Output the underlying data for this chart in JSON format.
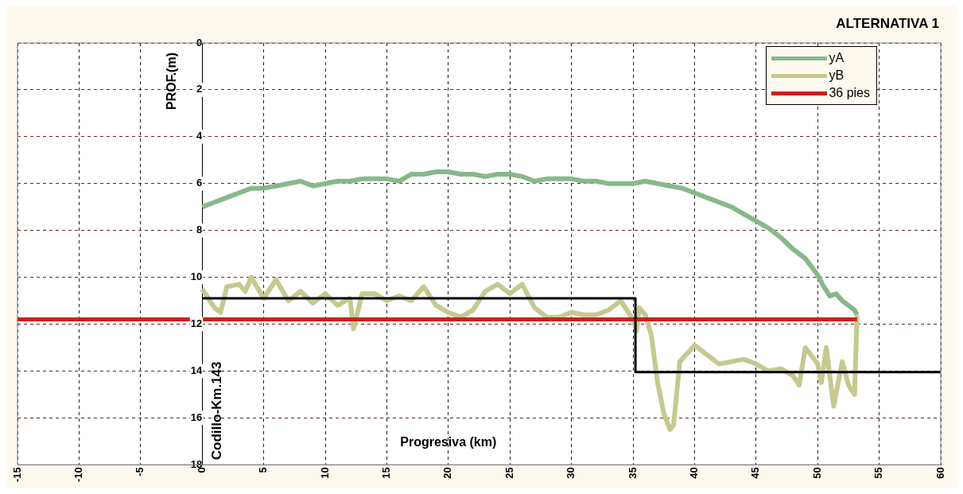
{
  "chart_data": {
    "type": "line",
    "title": "ALTERNATIVA 1",
    "xlabel": "Progresiva (km)",
    "ylabel": "PROF.(m)",
    "annotations": [
      "Codillo-Km.143"
    ],
    "xlim": [
      -15,
      60
    ],
    "xticks": [
      -15,
      -10,
      -5,
      0,
      5,
      10,
      15,
      20,
      25,
      30,
      35,
      40,
      45,
      50,
      55,
      60
    ],
    "ylim": [
      18,
      0
    ],
    "yticks": [
      0,
      2,
      4,
      6,
      8,
      10,
      12,
      14,
      16,
      18
    ],
    "grid": true,
    "legend": "top right",
    "line_style": "solid",
    "marker": "none",
    "series": [
      {
        "name": "yA",
        "color": "#88b88a",
        "x": [
          0,
          1,
          2,
          3,
          4,
          5,
          6,
          7,
          8,
          9,
          10,
          11,
          12,
          13,
          14,
          15,
          16,
          17,
          18,
          19,
          20,
          21,
          22,
          23,
          24,
          25,
          26,
          27,
          28,
          29,
          30,
          31,
          32,
          33,
          34,
          35,
          36,
          37,
          38,
          39,
          40,
          41,
          42,
          43,
          44,
          45,
          46,
          47,
          48,
          49,
          50,
          50.5,
          51,
          51.5,
          52,
          52.5,
          53,
          53.2
        ],
        "values": [
          7.0,
          6.8,
          6.6,
          6.4,
          6.2,
          6.2,
          6.1,
          6.0,
          5.9,
          6.1,
          6.0,
          5.9,
          5.9,
          5.8,
          5.8,
          5.8,
          5.9,
          5.6,
          5.6,
          5.5,
          5.5,
          5.6,
          5.6,
          5.7,
          5.6,
          5.6,
          5.7,
          5.9,
          5.8,
          5.8,
          5.8,
          5.9,
          5.9,
          6.0,
          6.0,
          6.0,
          5.9,
          6.0,
          6.1,
          6.2,
          6.4,
          6.6,
          6.8,
          7.0,
          7.3,
          7.6,
          7.9,
          8.3,
          8.8,
          9.2,
          9.9,
          10.4,
          10.8,
          10.7,
          11.0,
          11.2,
          11.4,
          11.6
        ]
      },
      {
        "name": "yB",
        "color": "#c6c98f",
        "x": [
          0,
          1,
          1.5,
          2,
          3,
          3.5,
          4,
          5,
          6,
          7,
          8,
          9,
          10,
          11,
          12,
          12.3,
          13,
          14,
          15,
          16,
          17,
          18,
          19,
          20,
          21,
          22,
          23,
          24,
          25,
          26,
          27,
          28,
          29,
          30,
          31,
          32,
          33,
          34,
          35,
          35.3,
          35.5,
          36,
          36.5,
          37,
          37.5,
          38,
          38.3,
          38.8,
          39.5,
          40,
          41,
          42,
          43,
          44,
          45,
          46,
          47,
          48,
          48.5,
          49,
          50,
          50.3,
          50.7,
          51.3,
          52,
          52.5,
          53,
          53.2
        ],
        "values": [
          10.5,
          11.3,
          11.5,
          10.4,
          10.3,
          10.6,
          10.0,
          10.9,
          10.1,
          11.0,
          10.6,
          11.1,
          10.7,
          11.2,
          10.9,
          12.2,
          10.7,
          10.7,
          11.0,
          10.8,
          11.0,
          10.4,
          11.2,
          11.5,
          11.7,
          11.4,
          10.6,
          10.3,
          10.7,
          10.3,
          11.3,
          11.7,
          11.7,
          11.5,
          11.6,
          11.6,
          11.4,
          11.0,
          11.8,
          12.3,
          11.3,
          11.6,
          12.5,
          14.5,
          15.8,
          16.5,
          16.3,
          13.6,
          13.2,
          12.9,
          13.3,
          13.7,
          13.6,
          13.5,
          13.7,
          14.0,
          13.9,
          14.2,
          14.6,
          13.0,
          13.7,
          14.5,
          13.0,
          15.5,
          13.6,
          14.6,
          15.0,
          11.6
        ]
      },
      {
        "name": "36 pies",
        "color": "#cc1f1f",
        "x": [
          -15,
          53.2
        ],
        "values": [
          11.8,
          11.8
        ]
      },
      {
        "color": "#000000",
        "x": [
          0,
          35.2,
          35.2,
          60
        ],
        "values": [
          10.9,
          10.9,
          14.05,
          14.05
        ]
      }
    ]
  }
}
